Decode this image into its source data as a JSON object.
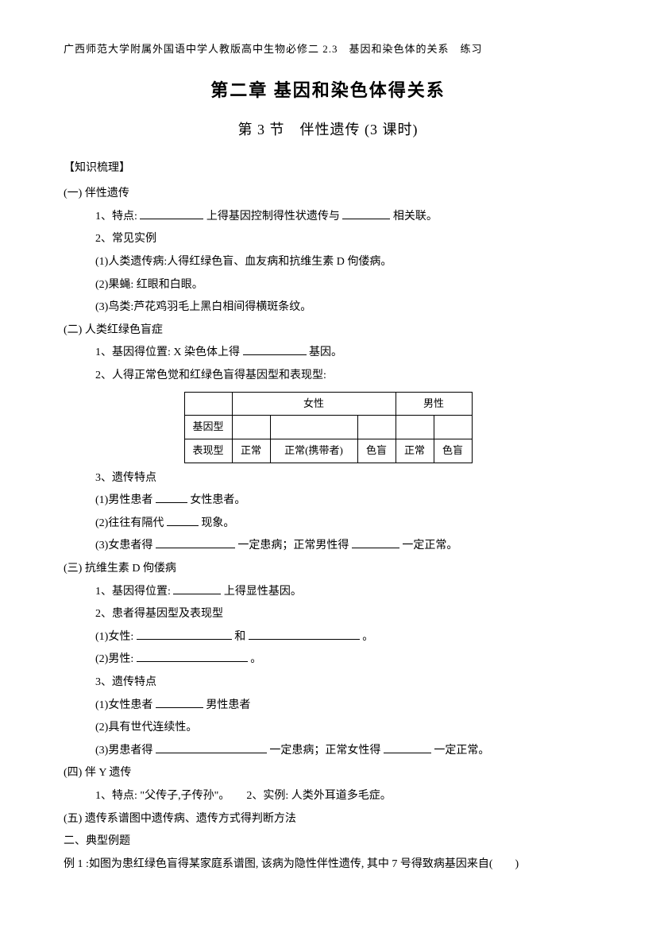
{
  "header": "广西师范大学附属外国语中学人教版高中生物必修二 2.3　基因和染色体的关系　练习",
  "main_title": "第二章 基因和染色体得关系",
  "sub_title": "第 3 节　伴性遗传 (3 课时)",
  "knowledge_label": "【知识梳理】",
  "s1": {
    "title": "(一) 伴性遗传",
    "i1a": "1、特点:",
    "i1b": "上得基因控制得性状遗传与",
    "i1c": "相关联。",
    "i2": "2、常见实例",
    "s1": "(1)人类遗传病:人得红绿色盲、血友病和抗维生素 D 佝偻病。",
    "s2": "(2)果蝇: 红眼和白眼。",
    "s3": "(3)鸟类:芦花鸡羽毛上黑白相间得横斑条纹。"
  },
  "s2": {
    "title": "(二) 人类红绿色盲症",
    "i1a": "1、基因得位置: X 染色体上得",
    "i1b": "基因。",
    "i2": "2、人得正常色觉和红绿色盲得基因型和表现型:",
    "table": {
      "female": "女性",
      "male": "男性",
      "genotype": "基因型",
      "phenotype": "表现型",
      "normal": "正常",
      "carrier": "正常(携带者)",
      "colorblind": "色盲"
    },
    "i3": "3、遗传特点",
    "p1a": "(1)男性患者",
    "p1b": "女性患者。",
    "p2a": "(2)往往有隔代",
    "p2b": "现象。",
    "p3a": "(3)女患者得",
    "p3b": "一定患病；正常男性得",
    "p3c": "一定正常。"
  },
  "s3": {
    "title": "(三) 抗维生素 D 佝偻病",
    "i1": "1、基因得位置:          上得显性基因。",
    "i2": "2、患者得基因型及表现型",
    "p1a": "(1)女性:",
    "p1b": "和",
    "p1c": "。",
    "p2a": "(2)男性:",
    "p2b": "。",
    "i3": "3、遗传特点",
    "q1a": "(1)女性患者",
    "q1b": "男性患者",
    "q2": "(2)具有世代连续性。",
    "q3a": "(3)男患者得",
    "q3b": "一定患病；正常女性得",
    "q3c": "一定正常。"
  },
  "s4": {
    "title": "(四) 伴 Y 遗传",
    "l1": "1、特点: \"父传子,子传孙\"。　　2、实例: 人类外耳道多毛症。"
  },
  "s5": {
    "title": "(五) 遗传系谱图中遗传病、遗传方式得判断方法"
  },
  "part2": "二、典型例题",
  "ex1": "例 1 :如图为患红绿色盲得某家庭系谱图, 该病为隐性伴性遗传, 其中 7 号得致病基因来自(　　)"
}
